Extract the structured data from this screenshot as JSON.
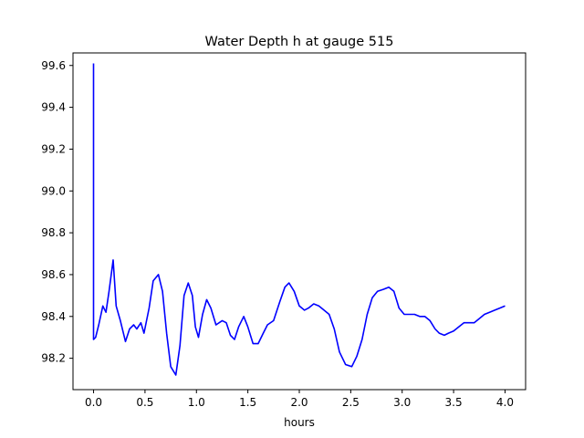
{
  "chart_data": {
    "type": "line",
    "title": "Water Depth h at gauge 515",
    "xlabel": "hours",
    "ylabel": "",
    "xlim": [
      -0.2,
      4.2
    ],
    "ylim": [
      98.05,
      99.66
    ],
    "grid": false,
    "x_ticks": [
      0.0,
      0.5,
      1.0,
      1.5,
      2.0,
      2.5,
      3.0,
      3.5,
      4.0
    ],
    "x_tick_labels": [
      "0.0",
      "0.5",
      "1.0",
      "1.5",
      "2.0",
      "2.5",
      "3.0",
      "3.5",
      "4.0"
    ],
    "y_ticks": [
      98.2,
      98.4,
      98.6,
      98.8,
      99.0,
      99.2,
      99.4,
      99.6
    ],
    "y_tick_labels": [
      "98.2",
      "98.4",
      "98.6",
      "98.8",
      "99.0",
      "99.2",
      "99.4",
      "99.6"
    ],
    "series": [
      {
        "color": "#0000ff",
        "x": [
          0.0,
          0.0,
          0.02,
          0.05,
          0.09,
          0.12,
          0.15,
          0.19,
          0.22,
          0.26,
          0.31,
          0.35,
          0.39,
          0.42,
          0.46,
          0.49,
          0.54,
          0.58,
          0.63,
          0.67,
          0.71,
          0.75,
          0.8,
          0.84,
          0.88,
          0.92,
          0.96,
          0.99,
          1.02,
          1.06,
          1.1,
          1.14,
          1.19,
          1.25,
          1.29,
          1.33,
          1.37,
          1.41,
          1.46,
          1.5,
          1.55,
          1.6,
          1.65,
          1.69,
          1.75,
          1.81,
          1.86,
          1.9,
          1.95,
          2.0,
          2.05,
          2.09,
          2.14,
          2.19,
          2.24,
          2.29,
          2.34,
          2.39,
          2.45,
          2.51,
          2.56,
          2.61,
          2.66,
          2.71,
          2.76,
          2.82,
          2.87,
          2.92,
          2.97,
          3.02,
          3.07,
          3.12,
          3.17,
          3.22,
          3.27,
          3.32,
          3.36,
          3.41,
          3.45,
          3.5,
          3.55,
          3.6,
          3.65,
          3.7,
          3.75,
          3.8,
          3.85,
          3.9,
          3.95,
          4.0
        ],
        "y": [
          99.61,
          98.29,
          98.3,
          98.36,
          98.45,
          98.42,
          98.52,
          98.67,
          98.45,
          98.38,
          98.28,
          98.34,
          98.36,
          98.34,
          98.37,
          98.32,
          98.44,
          98.57,
          98.6,
          98.52,
          98.32,
          98.16,
          98.12,
          98.26,
          98.5,
          98.56,
          98.5,
          98.35,
          98.3,
          98.41,
          98.48,
          98.44,
          98.36,
          98.38,
          98.37,
          98.31,
          98.29,
          98.35,
          98.4,
          98.35,
          98.27,
          98.27,
          98.32,
          98.36,
          98.38,
          98.47,
          98.54,
          98.56,
          98.52,
          98.45,
          98.43,
          98.44,
          98.46,
          98.45,
          98.43,
          98.41,
          98.34,
          98.23,
          98.17,
          98.16,
          98.21,
          98.29,
          98.41,
          98.49,
          98.52,
          98.53,
          98.54,
          98.52,
          98.44,
          98.41,
          98.41,
          98.41,
          98.4,
          98.4,
          98.38,
          98.34,
          98.32,
          98.31,
          98.32,
          98.33,
          98.35,
          98.37,
          98.37,
          98.37,
          98.39,
          98.41,
          98.42,
          98.43,
          98.44,
          98.45
        ]
      }
    ]
  }
}
